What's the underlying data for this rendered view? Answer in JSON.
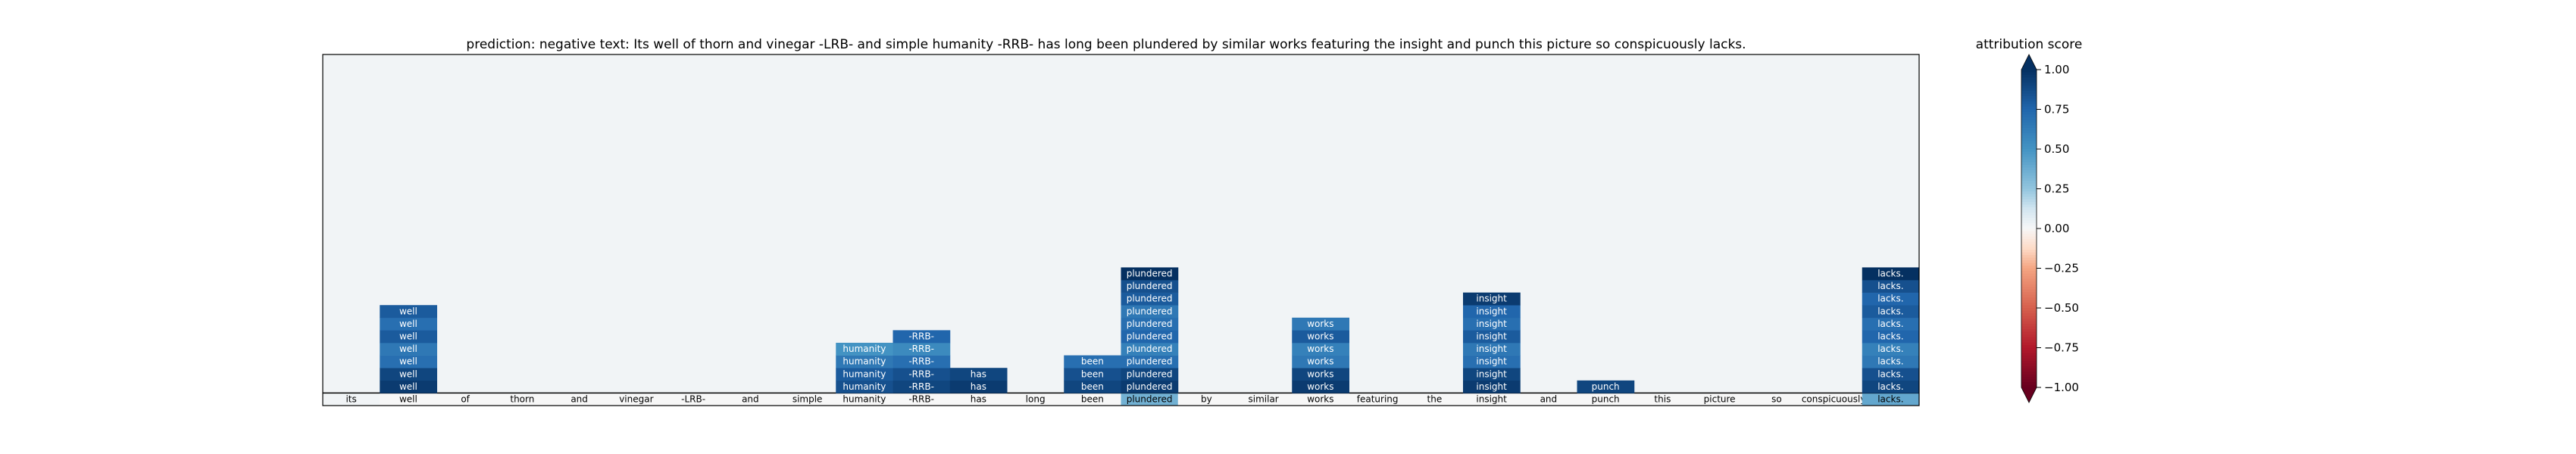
{
  "chart_data": {
    "type": "heatmap",
    "title": "prediction:  negative     text:  Its well of thorn and vinegar -LRB- and simple humanity -RRB- has long been plundered by similar works featuring the insight and punch this picture so conspicuously lacks.",
    "tokens": [
      "its",
      "well",
      "of",
      "thorn",
      "and",
      "vinegar",
      "-LRB-",
      "and",
      "simple",
      "humanity",
      "-RRB-",
      "has",
      "long",
      "been",
      "plundered",
      "by",
      "similar",
      "works",
      "featuring",
      "the",
      "insight",
      "and",
      "punch",
      "this",
      "picture",
      "so",
      "conspicuously",
      "lacks."
    ],
    "base_values": [
      0.02,
      0.0,
      0.0,
      0.0,
      0.0,
      0.0,
      0.0,
      0.0,
      0.0,
      0.0,
      0.0,
      0.0,
      0.0,
      0.0,
      0.35,
      0.0,
      0.0,
      0.0,
      0.0,
      0.0,
      0.0,
      0.0,
      0.0,
      0.0,
      0.0,
      0.0,
      0.0,
      0.4
    ],
    "cells": [
      {
        "token": "well",
        "level": 1,
        "value": 0.95
      },
      {
        "token": "well",
        "level": 2,
        "value": 0.9
      },
      {
        "token": "well",
        "level": 3,
        "value": 0.7
      },
      {
        "token": "well",
        "level": 4,
        "value": 0.65
      },
      {
        "token": "well",
        "level": 5,
        "value": 0.8
      },
      {
        "token": "well",
        "level": 6,
        "value": 0.7
      },
      {
        "token": "well",
        "level": 7,
        "value": 0.8
      },
      {
        "token": "humanity",
        "level": 1,
        "value": 0.85
      },
      {
        "token": "humanity",
        "level": 2,
        "value": 0.8
      },
      {
        "token": "humanity",
        "level": 3,
        "value": 0.65
      },
      {
        "token": "humanity",
        "level": 4,
        "value": 0.5
      },
      {
        "token": "-RRB-",
        "level": 1,
        "value": 0.9
      },
      {
        "token": "-RRB-",
        "level": 2,
        "value": 0.85
      },
      {
        "token": "-RRB-",
        "level": 3,
        "value": 0.7
      },
      {
        "token": "-RRB-",
        "level": 4,
        "value": 0.55
      },
      {
        "token": "-RRB-",
        "level": 5,
        "value": 0.75
      },
      {
        "token": "has",
        "level": 1,
        "value": 0.95
      },
      {
        "token": "has",
        "level": 2,
        "value": 0.9
      },
      {
        "token": "been",
        "level": 1,
        "value": 0.9
      },
      {
        "token": "been",
        "level": 2,
        "value": 0.85
      },
      {
        "token": "been",
        "level": 3,
        "value": 0.7
      },
      {
        "token": "plundered",
        "level": 1,
        "value": 0.95
      },
      {
        "token": "plundered",
        "level": 2,
        "value": 0.9
      },
      {
        "token": "plundered",
        "level": 3,
        "value": 0.7
      },
      {
        "token": "plundered",
        "level": 4,
        "value": 0.6
      },
      {
        "token": "plundered",
        "level": 5,
        "value": 0.75
      },
      {
        "token": "plundered",
        "level": 6,
        "value": 0.7
      },
      {
        "token": "plundered",
        "level": 7,
        "value": 0.65
      },
      {
        "token": "plundered",
        "level": 8,
        "value": 0.8
      },
      {
        "token": "plundered",
        "level": 9,
        "value": 0.85
      },
      {
        "token": "plundered",
        "level": 10,
        "value": 1.0
      },
      {
        "token": "works",
        "level": 1,
        "value": 0.95
      },
      {
        "token": "works",
        "level": 2,
        "value": 0.9
      },
      {
        "token": "works",
        "level": 3,
        "value": 0.65
      },
      {
        "token": "works",
        "level": 4,
        "value": 0.6
      },
      {
        "token": "works",
        "level": 5,
        "value": 0.8
      },
      {
        "token": "works",
        "level": 6,
        "value": 0.65
      },
      {
        "token": "insight",
        "level": 1,
        "value": 0.95
      },
      {
        "token": "insight",
        "level": 2,
        "value": 0.9
      },
      {
        "token": "insight",
        "level": 3,
        "value": 0.7
      },
      {
        "token": "insight",
        "level": 4,
        "value": 0.65
      },
      {
        "token": "insight",
        "level": 5,
        "value": 0.8
      },
      {
        "token": "insight",
        "level": 6,
        "value": 0.7
      },
      {
        "token": "insight",
        "level": 7,
        "value": 0.75
      },
      {
        "token": "insight",
        "level": 8,
        "value": 0.95
      },
      {
        "token": "punch",
        "level": 1,
        "value": 0.9
      },
      {
        "token": "lacks.",
        "level": 1,
        "value": 0.9
      },
      {
        "token": "lacks.",
        "level": 2,
        "value": 0.85
      },
      {
        "token": "lacks.",
        "level": 3,
        "value": 0.65
      },
      {
        "token": "lacks.",
        "level": 4,
        "value": 0.6
      },
      {
        "token": "lacks.",
        "level": 5,
        "value": 0.75
      },
      {
        "token": "lacks.",
        "level": 6,
        "value": 0.7
      },
      {
        "token": "lacks.",
        "level": 7,
        "value": 0.8
      },
      {
        "token": "lacks.",
        "level": 8,
        "value": 0.75
      },
      {
        "token": "lacks.",
        "level": 9,
        "value": 0.85
      },
      {
        "token": "lacks.",
        "level": 10,
        "value": 1.0
      }
    ],
    "grid_levels": 26,
    "background_value": 0.02,
    "colormap": "RdBu",
    "colorbar": {
      "label": "attribution score",
      "range": [
        -1.0,
        1.0
      ],
      "ticks": [
        1.0,
        0.75,
        0.5,
        0.25,
        0.0,
        -0.25,
        -0.5,
        -0.75,
        -1.0
      ],
      "tick_labels": [
        "1.00",
        "0.75",
        "0.50",
        "0.25",
        "0.00",
        "−0.25",
        "−0.50",
        "−0.75",
        "−1.00"
      ],
      "extend": "both"
    },
    "colors": {
      "neg_end": "#67001f",
      "neutral": "#f7f7f7",
      "pos_end": "#053061"
    }
  }
}
